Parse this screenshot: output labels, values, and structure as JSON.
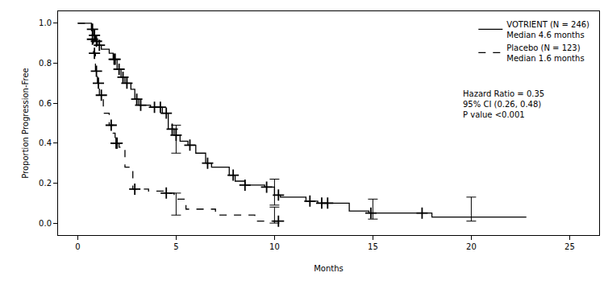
{
  "chart_data": {
    "type": "line",
    "x_label": "Months",
    "y_label": "Proportion Progression-Free",
    "xlim": [
      -1,
      26.5
    ],
    "ylim": [
      -0.06,
      1.06
    ],
    "xticks": [
      0,
      5,
      10,
      15,
      20,
      25
    ],
    "yticks": [
      {
        "value": 0,
        "label": "0.0"
      },
      {
        "value": 0.2,
        "label": "0.2"
      },
      {
        "value": 0.4,
        "label": "0.4"
      },
      {
        "value": 0.6,
        "label": "0.6"
      },
      {
        "value": 0.8,
        "label": "0.8"
      },
      {
        "value": 1.0,
        "label": "1.0"
      }
    ],
    "grid": false,
    "legend": "upper right",
    "annotations": [
      "Hazard Ratio = 0.35",
      "95% CI (0.26, 0.48)",
      "P value <0.001"
    ],
    "series": [
      {
        "name": "VOTRIENT (N = 246)",
        "note": "Median 4.6 months",
        "color": "#000000",
        "line_style": "solid",
        "marker": "cross",
        "x": [
          0,
          0.7,
          0.8,
          0.9,
          1.0,
          1.2,
          1.6,
          1.8,
          2.0,
          2.2,
          2.4,
          2.7,
          2.9,
          3.1,
          3.7,
          4.3,
          4.6,
          4.9,
          5.2,
          5.6,
          6.0,
          6.5,
          6.8,
          7.7,
          8.0,
          8.5,
          9.5,
          10.0,
          10.3,
          11.6,
          12.2,
          13.8,
          14.8,
          18.0,
          22.8
        ],
        "values": [
          1.0,
          0.97,
          0.94,
          0.91,
          0.89,
          0.87,
          0.85,
          0.82,
          0.77,
          0.73,
          0.7,
          0.67,
          0.62,
          0.59,
          0.58,
          0.55,
          0.47,
          0.44,
          0.41,
          0.39,
          0.35,
          0.3,
          0.28,
          0.24,
          0.21,
          0.19,
          0.18,
          0.14,
          0.13,
          0.11,
          0.1,
          0.06,
          0.05,
          0.03,
          0.03
        ],
        "censored_x": [
          0.75,
          0.85,
          0.95,
          1.1,
          1.85,
          1.9,
          2.1,
          2.3,
          2.5,
          3.0,
          3.2,
          3.9,
          4.2,
          4.5,
          4.8,
          5.0,
          5.7,
          6.6,
          7.9,
          8.5,
          9.6,
          10.2,
          11.8,
          12.4,
          12.7,
          14.9,
          17.5
        ],
        "censored_values": [
          0.97,
          0.94,
          0.91,
          0.89,
          0.82,
          0.82,
          0.77,
          0.73,
          0.7,
          0.62,
          0.59,
          0.58,
          0.58,
          0.55,
          0.47,
          0.44,
          0.39,
          0.3,
          0.24,
          0.19,
          0.18,
          0.14,
          0.11,
          0.1,
          0.1,
          0.05,
          0.05
        ],
        "ci": [
          {
            "x": 5,
            "value": 0.44,
            "low": 0.35,
            "high": 0.49
          },
          {
            "x": 10,
            "value": 0.14,
            "low": 0.09,
            "high": 0.22
          },
          {
            "x": 15,
            "value": 0.05,
            "low": 0.02,
            "high": 0.12
          },
          {
            "x": 20,
            "value": 0.03,
            "low": 0.01,
            "high": 0.13
          }
        ]
      },
      {
        "name": "Placebo (N = 123)",
        "note": "Median 1.6 months",
        "color": "#000000",
        "line_style": "dash",
        "marker": "cross",
        "x": [
          0,
          0.7,
          0.8,
          0.9,
          1.0,
          1.1,
          1.3,
          1.6,
          1.8,
          1.9,
          2.1,
          2.4,
          2.8,
          3.6,
          4.4,
          4.9,
          5.5,
          7.0,
          9.0,
          10.3
        ],
        "values": [
          1.0,
          0.92,
          0.85,
          0.76,
          0.7,
          0.64,
          0.55,
          0.49,
          0.45,
          0.4,
          0.38,
          0.28,
          0.17,
          0.16,
          0.15,
          0.12,
          0.07,
          0.04,
          0.01,
          0.01
        ],
        "censored_x": [
          0.75,
          0.85,
          0.95,
          1.05,
          1.2,
          1.7,
          1.95,
          2.0,
          2.9,
          4.5,
          10.2
        ],
        "censored_values": [
          0.92,
          0.85,
          0.76,
          0.7,
          0.64,
          0.49,
          0.4,
          0.4,
          0.17,
          0.15,
          0.01
        ],
        "ci": [
          {
            "x": 5,
            "value": 0.12,
            "low": 0.04,
            "high": 0.15
          },
          {
            "x": 10,
            "value": 0.01,
            "low": 0.0,
            "high": 0.08
          }
        ]
      }
    ]
  }
}
